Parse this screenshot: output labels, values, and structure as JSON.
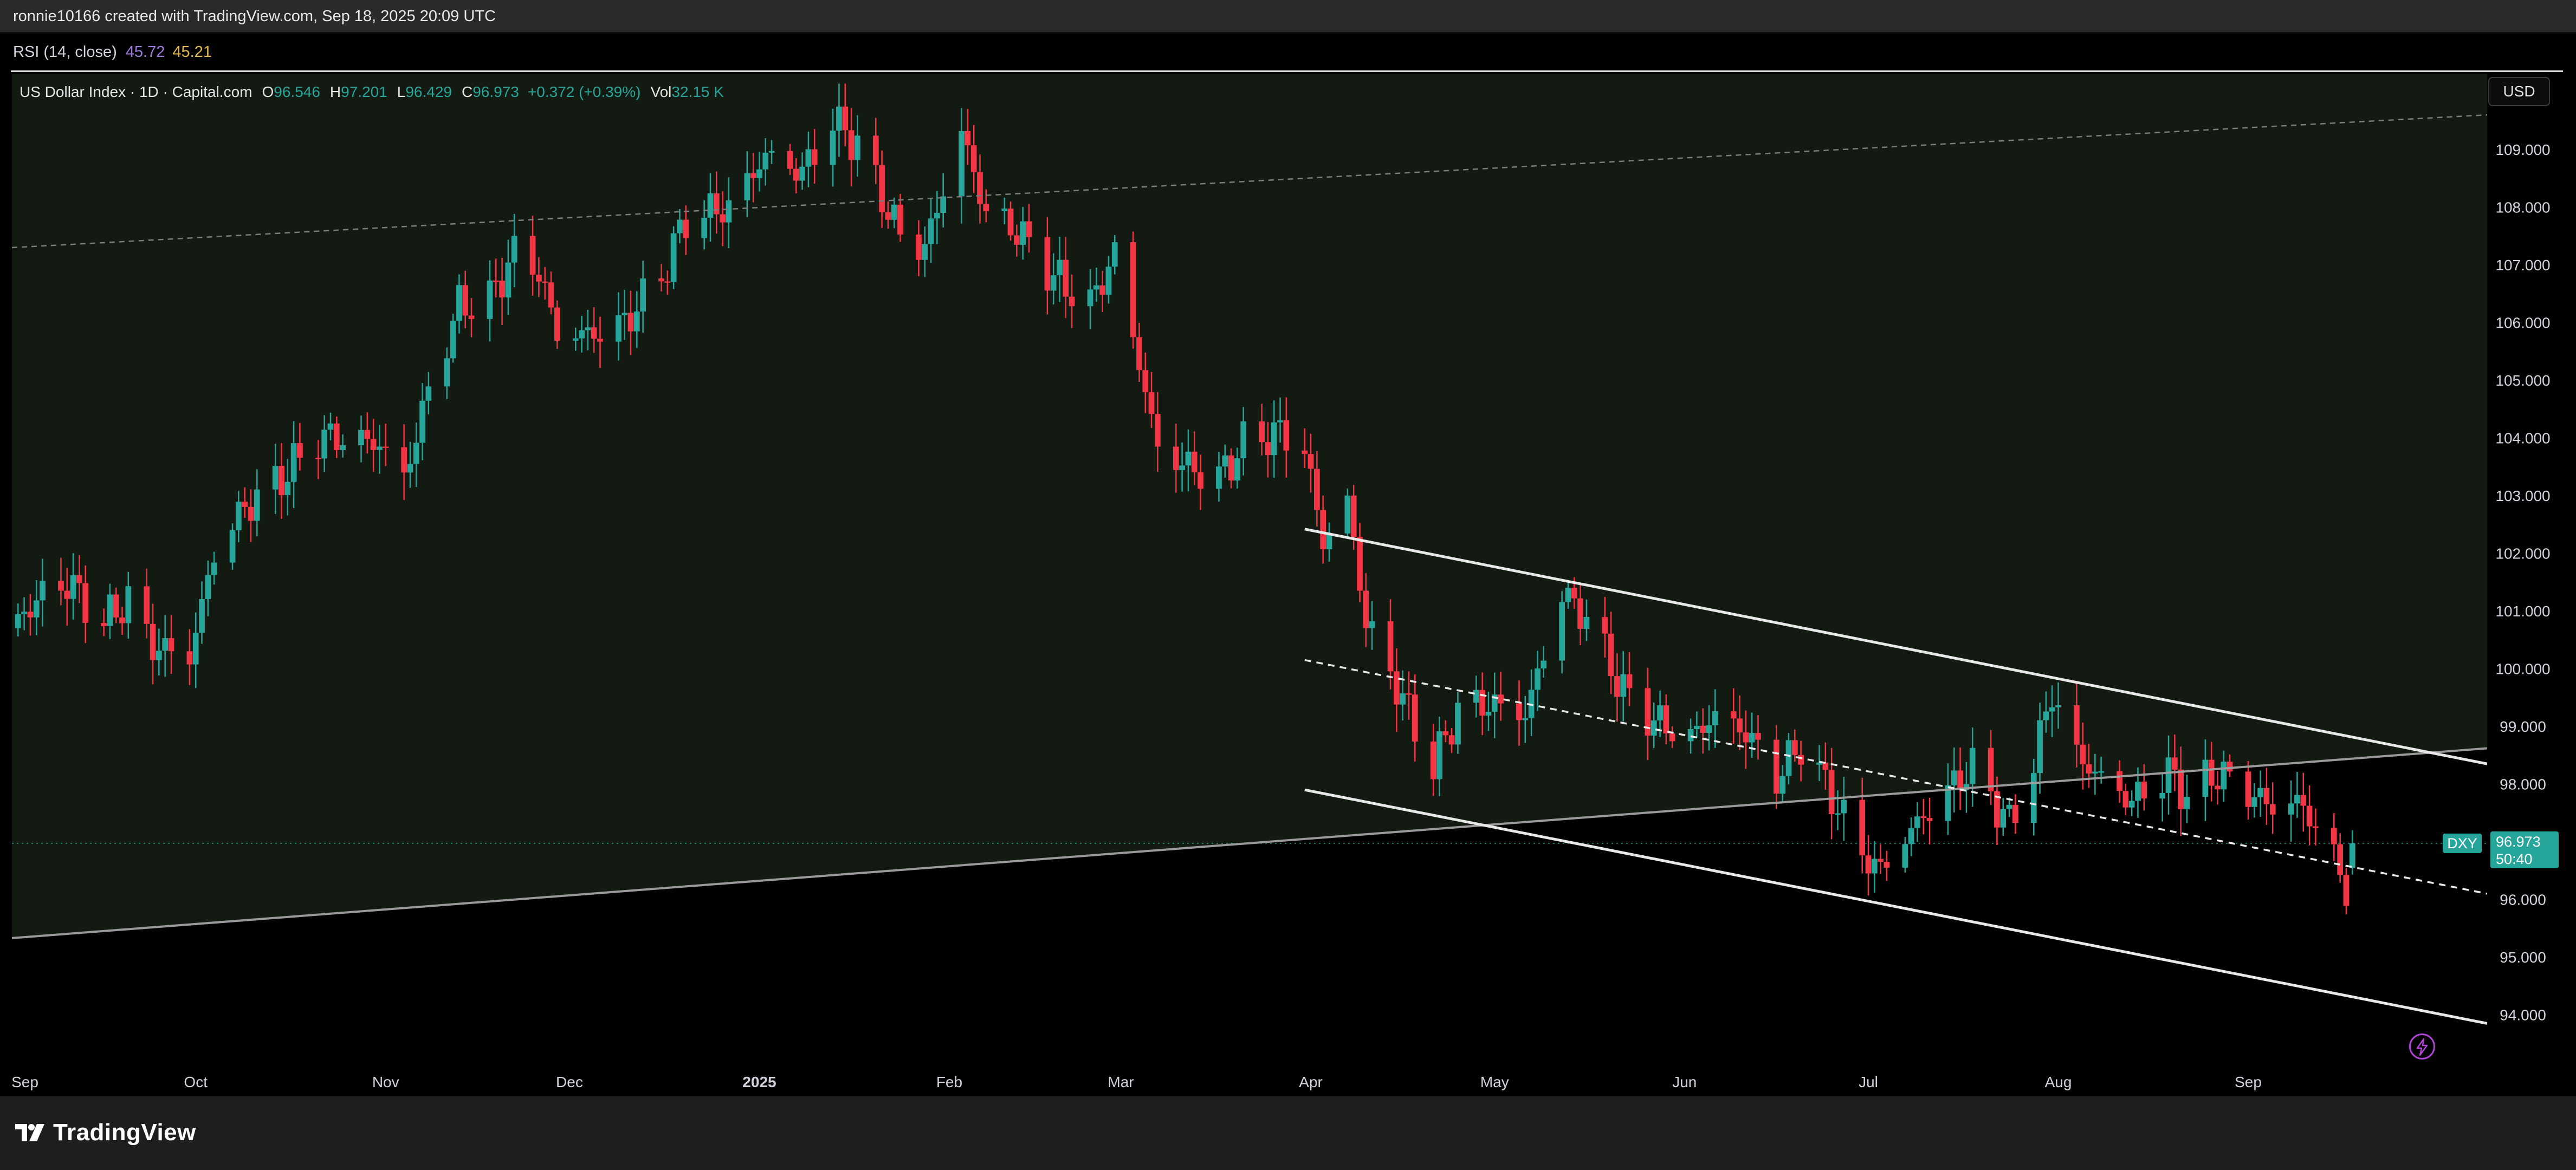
{
  "header": {
    "credit": "ronnie10166 created with TradingView.com, Sep 18, 2025 20:09 UTC"
  },
  "rsi": {
    "label": "RSI (14, close)",
    "value1": "45.72",
    "value2": "45.21"
  },
  "legend": {
    "symbol": "US Dollar Index · 1D · Capital.com",
    "o_label": "O",
    "o": "96.546",
    "h_label": "H",
    "h": "97.201",
    "l_label": "L",
    "l": "96.429",
    "c_label": "C",
    "c": "96.973",
    "change": "+0.372 (+0.39%)",
    "vol_label": "Vol",
    "vol": "32.15 K"
  },
  "currency_button": "USD",
  "price_tag": {
    "symbol": "DXY",
    "price": "96.973",
    "countdown": "50:40"
  },
  "footer": {
    "brand": "TradingView"
  },
  "colors": {
    "up": "#26a69a",
    "down": "#f23645",
    "background": "#000000",
    "history_shade": "#121a12"
  },
  "icons": {
    "bolt": "lightning-bolt-icon",
    "logo": "tradingview-logo-icon"
  },
  "chart_data": {
    "type": "candlestick",
    "instrument": "US Dollar Index",
    "interval": "1D",
    "price_axis": {
      "unit": "USD",
      "ticks": [
        "109.000",
        "108.000",
        "107.000",
        "106.000",
        "105.000",
        "104.000",
        "103.000",
        "102.000",
        "101.000",
        "100.000",
        "99.000",
        "98.000",
        "96.000",
        "95.000",
        "94.000"
      ],
      "range": [
        93.4,
        110.2
      ]
    },
    "time_axis": {
      "ticks": [
        "Sep",
        "Oct",
        "Nov",
        "Dec",
        "2025",
        "Feb",
        "Mar",
        "Apr",
        "May",
        "Jun",
        "Jul",
        "Aug",
        "Sep"
      ],
      "range": [
        "2024-09-01",
        "2025-10-10"
      ]
    },
    "path_points": [
      {
        "date": "2024-09-01",
        "price": 100.7
      },
      {
        "date": "2024-09-05",
        "price": 101.2
      },
      {
        "date": "2024-09-10",
        "price": 101.5
      },
      {
        "date": "2024-09-16",
        "price": 100.8
      },
      {
        "date": "2024-09-20",
        "price": 101.2
      },
      {
        "date": "2024-09-24",
        "price": 100.4
      },
      {
        "date": "2024-09-30",
        "price": 100.2
      },
      {
        "date": "2024-10-04",
        "price": 102.0
      },
      {
        "date": "2024-10-09",
        "price": 102.8
      },
      {
        "date": "2024-10-15",
        "price": 103.3
      },
      {
        "date": "2024-10-21",
        "price": 104.0
      },
      {
        "date": "2024-10-25",
        "price": 104.0
      },
      {
        "date": "2024-10-31",
        "price": 103.9
      },
      {
        "date": "2024-11-04",
        "price": 103.3
      },
      {
        "date": "2024-11-08",
        "price": 104.8
      },
      {
        "date": "2024-11-13",
        "price": 106.3
      },
      {
        "date": "2024-11-18",
        "price": 106.4
      },
      {
        "date": "2024-11-22",
        "price": 107.2
      },
      {
        "date": "2024-11-26",
        "price": 106.9
      },
      {
        "date": "2024-11-29",
        "price": 105.8
      },
      {
        "date": "2024-12-05",
        "price": 105.8
      },
      {
        "date": "2024-12-10",
        "price": 106.0
      },
      {
        "date": "2024-12-16",
        "price": 106.8
      },
      {
        "date": "2024-12-20",
        "price": 107.8
      },
      {
        "date": "2024-12-27",
        "price": 108.0
      },
      {
        "date": "2025-01-02",
        "price": 108.9
      },
      {
        "date": "2025-01-08",
        "price": 108.6
      },
      {
        "date": "2025-01-13",
        "price": 109.5
      },
      {
        "date": "2025-01-17",
        "price": 109.1
      },
      {
        "date": "2025-01-24",
        "price": 107.5
      },
      {
        "date": "2025-01-28",
        "price": 107.3
      },
      {
        "date": "2025-02-03",
        "price": 109.3
      },
      {
        "date": "2025-02-07",
        "price": 107.9
      },
      {
        "date": "2025-02-12",
        "price": 107.6
      },
      {
        "date": "2025-02-18",
        "price": 106.8
      },
      {
        "date": "2025-02-24",
        "price": 106.3
      },
      {
        "date": "2025-02-28",
        "price": 107.2
      },
      {
        "date": "2025-03-04",
        "price": 105.3
      },
      {
        "date": "2025-03-07",
        "price": 103.8
      },
      {
        "date": "2025-03-12",
        "price": 103.5
      },
      {
        "date": "2025-03-17",
        "price": 103.3
      },
      {
        "date": "2025-03-21",
        "price": 103.9
      },
      {
        "date": "2025-03-27",
        "price": 104.1
      },
      {
        "date": "2025-03-31",
        "price": 103.8
      },
      {
        "date": "2025-04-03",
        "price": 102.2
      },
      {
        "date": "2025-04-07",
        "price": 102.9
      },
      {
        "date": "2025-04-10",
        "price": 100.8
      },
      {
        "date": "2025-04-15",
        "price": 99.7
      },
      {
        "date": "2025-04-21",
        "price": 98.3
      },
      {
        "date": "2025-04-25",
        "price": 99.3
      },
      {
        "date": "2025-04-30",
        "price": 99.4
      },
      {
        "date": "2025-05-06",
        "price": 99.2
      },
      {
        "date": "2025-05-12",
        "price": 101.3
      },
      {
        "date": "2025-05-16",
        "price": 100.9
      },
      {
        "date": "2025-05-22",
        "price": 99.6
      },
      {
        "date": "2025-05-27",
        "price": 99.1
      },
      {
        "date": "2025-06-02",
        "price": 98.8
      },
      {
        "date": "2025-06-06",
        "price": 99.2
      },
      {
        "date": "2025-06-11",
        "price": 98.9
      },
      {
        "date": "2025-06-16",
        "price": 98.1
      },
      {
        "date": "2025-06-20",
        "price": 98.7
      },
      {
        "date": "2025-06-25",
        "price": 97.8
      },
      {
        "date": "2025-06-30",
        "price": 96.8
      },
      {
        "date": "2025-07-03",
        "price": 96.5
      },
      {
        "date": "2025-07-08",
        "price": 97.2
      },
      {
        "date": "2025-07-14",
        "price": 97.9
      },
      {
        "date": "2025-07-18",
        "price": 98.3
      },
      {
        "date": "2025-07-24",
        "price": 97.3
      },
      {
        "date": "2025-07-28",
        "price": 98.4
      },
      {
        "date": "2025-07-31",
        "price": 99.6
      },
      {
        "date": "2025-08-04",
        "price": 98.5
      },
      {
        "date": "2025-08-08",
        "price": 98.1
      },
      {
        "date": "2025-08-13",
        "price": 97.7
      },
      {
        "date": "2025-08-19",
        "price": 98.2
      },
      {
        "date": "2025-08-22",
        "price": 97.8
      },
      {
        "date": "2025-08-27",
        "price": 98.2
      },
      {
        "date": "2025-09-02",
        "price": 97.8
      },
      {
        "date": "2025-09-05",
        "price": 97.6
      },
      {
        "date": "2025-09-09",
        "price": 97.7
      },
      {
        "date": "2025-09-12",
        "price": 97.3
      },
      {
        "date": "2025-09-15",
        "price": 96.7
      },
      {
        "date": "2025-09-17",
        "price": 96.2
      },
      {
        "date": "2025-09-18",
        "price": 96.97
      }
    ],
    "last_bar": {
      "date": "2025-09-18",
      "open": 96.546,
      "high": 97.201,
      "low": 96.429,
      "close": 96.973
    },
    "drawings": [
      {
        "kind": "upper-dashed-trend",
        "style": "dashed",
        "from": {
          "date": "2024-09-01",
          "price": 107.3
        },
        "to": {
          "date": "2025-10-10",
          "price": 109.6
        }
      },
      {
        "kind": "rising-trendline",
        "style": "solid-gray",
        "from": {
          "date": "2024-09-01",
          "price": 95.33
        },
        "to": {
          "date": "2025-10-10",
          "price": 98.62
        }
      },
      {
        "kind": "channel-top",
        "style": "solid-white",
        "from": {
          "date": "2025-03-31",
          "price": 102.42
        },
        "to": {
          "date": "2025-10-10",
          "price": 98.35
        }
      },
      {
        "kind": "channel-mid",
        "style": "dashed-white",
        "from": {
          "date": "2025-03-31",
          "price": 100.15
        },
        "to": {
          "date": "2025-10-10",
          "price": 96.1
        }
      },
      {
        "kind": "channel-bottom",
        "style": "solid-white",
        "from": {
          "date": "2025-03-31",
          "price": 97.9
        },
        "to": {
          "date": "2025-10-10",
          "price": 93.85
        }
      }
    ]
  }
}
